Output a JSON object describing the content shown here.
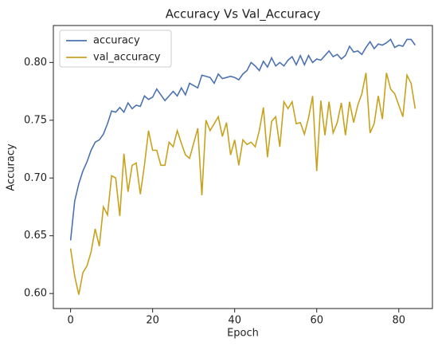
{
  "chart_data": {
    "type": "line",
    "title": "Accuracy Vs Val_Accuracy",
    "x_label": "Epoch",
    "y_label": "Accuracy",
    "x": [
      0,
      1,
      2,
      3,
      4,
      5,
      6,
      7,
      8,
      9,
      10,
      11,
      12,
      13,
      14,
      15,
      16,
      17,
      18,
      19,
      20,
      21,
      22,
      23,
      24,
      25,
      26,
      27,
      28,
      29,
      30,
      31,
      32,
      33,
      34,
      35,
      36,
      37,
      38,
      39,
      40,
      41,
      42,
      43,
      44,
      45,
      46,
      47,
      48,
      49,
      50,
      51,
      52,
      53,
      54,
      55,
      56,
      57,
      58,
      59,
      60,
      61,
      62,
      63,
      64,
      65,
      66,
      67,
      68,
      69,
      70,
      71,
      72,
      73,
      74,
      75,
      76,
      77,
      78,
      79,
      80,
      81,
      82,
      83,
      84
    ],
    "series": [
      {
        "name": "accuracy",
        "color": "#4c72b0",
        "values": [
          0.646,
          0.68,
          0.695,
          0.706,
          0.714,
          0.724,
          0.731,
          0.733,
          0.738,
          0.747,
          0.758,
          0.757,
          0.761,
          0.757,
          0.765,
          0.76,
          0.763,
          0.762,
          0.771,
          0.768,
          0.77,
          0.777,
          0.772,
          0.767,
          0.771,
          0.775,
          0.771,
          0.778,
          0.772,
          0.782,
          0.78,
          0.778,
          0.789,
          0.788,
          0.787,
          0.782,
          0.79,
          0.786,
          0.787,
          0.788,
          0.787,
          0.785,
          0.79,
          0.793,
          0.8,
          0.797,
          0.793,
          0.801,
          0.796,
          0.804,
          0.797,
          0.8,
          0.797,
          0.802,
          0.805,
          0.798,
          0.806,
          0.798,
          0.806,
          0.8,
          0.803,
          0.802,
          0.806,
          0.81,
          0.805,
          0.807,
          0.803,
          0.806,
          0.814,
          0.809,
          0.81,
          0.807,
          0.813,
          0.818,
          0.812,
          0.816,
          0.815,
          0.817,
          0.82,
          0.813,
          0.815,
          0.814,
          0.82,
          0.82,
          0.815
        ]
      },
      {
        "name": "val_accuracy",
        "color": "#c8a21e",
        "values": [
          0.639,
          0.615,
          0.599,
          0.618,
          0.624,
          0.636,
          0.656,
          0.641,
          0.675,
          0.668,
          0.702,
          0.7,
          0.667,
          0.721,
          0.688,
          0.711,
          0.713,
          0.686,
          0.711,
          0.741,
          0.724,
          0.724,
          0.711,
          0.711,
          0.731,
          0.727,
          0.741,
          0.73,
          0.72,
          0.717,
          0.73,
          0.743,
          0.685,
          0.75,
          0.741,
          0.747,
          0.753,
          0.736,
          0.748,
          0.72,
          0.733,
          0.711,
          0.733,
          0.729,
          0.731,
          0.727,
          0.741,
          0.761,
          0.718,
          0.749,
          0.753,
          0.727,
          0.766,
          0.76,
          0.766,
          0.747,
          0.748,
          0.738,
          0.752,
          0.771,
          0.706,
          0.767,
          0.737,
          0.766,
          0.739,
          0.748,
          0.765,
          0.737,
          0.766,
          0.748,
          0.763,
          0.773,
          0.791,
          0.739,
          0.747,
          0.771,
          0.751,
          0.791,
          0.777,
          0.773,
          0.763,
          0.753,
          0.789,
          0.782,
          0.76
        ]
      }
    ],
    "xlim": [
      -4.2,
      88.2
    ],
    "xticks": [
      0,
      20,
      40,
      60,
      80
    ],
    "ylim": [
      0.587,
      0.832
    ],
    "yticks": [
      {
        "value": 0.6,
        "label": "0.60"
      },
      {
        "value": 0.65,
        "label": "0.65"
      },
      {
        "value": 0.7,
        "label": "0.70"
      },
      {
        "value": 0.75,
        "label": "0.75"
      },
      {
        "value": 0.8,
        "label": "0.80"
      }
    ],
    "legend": "upper left"
  }
}
